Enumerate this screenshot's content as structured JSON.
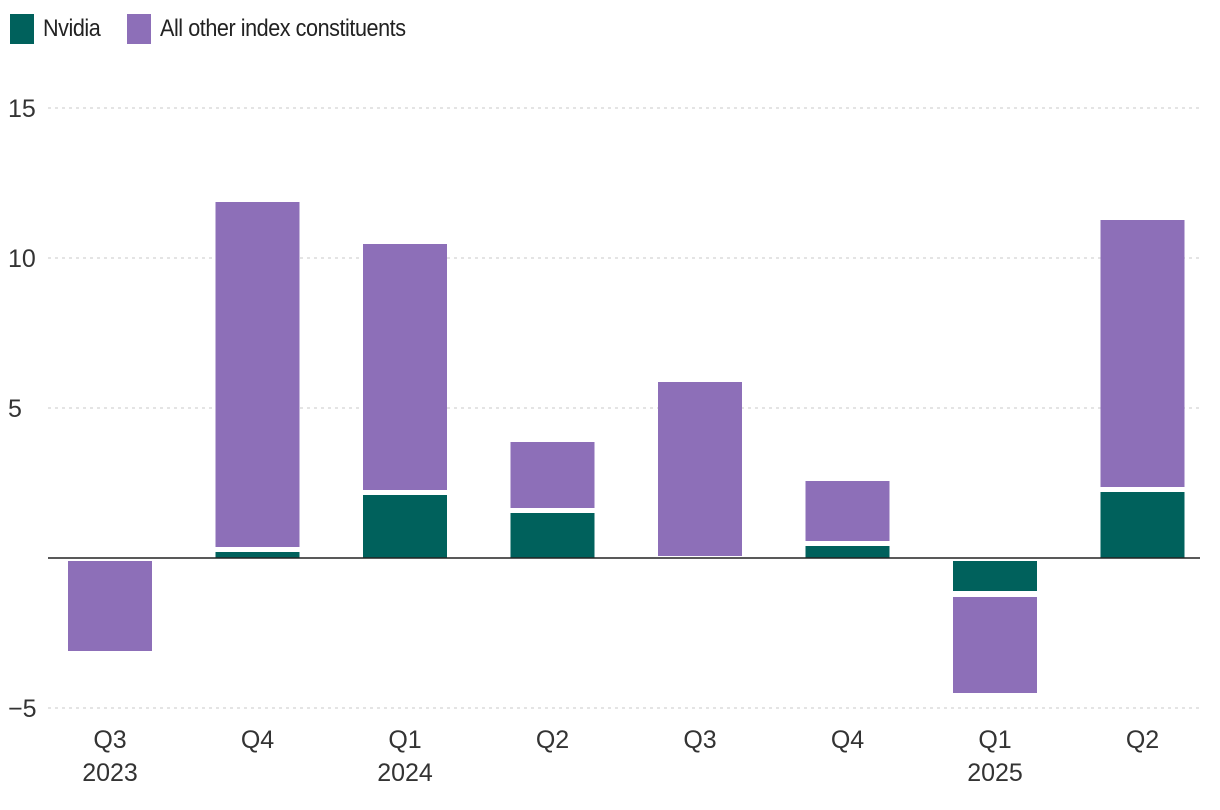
{
  "chart_data": {
    "type": "bar",
    "stacked": true,
    "title": "",
    "xlabel": "",
    "ylabel": "",
    "ylim": [
      -5,
      15
    ],
    "yticks": [
      -5,
      5,
      10,
      15
    ],
    "ytick_labels": [
      "−5",
      "5",
      "10",
      "15"
    ],
    "grid": true,
    "legend_position": "top-left",
    "categories": [
      "Q3",
      "Q4",
      "Q1",
      "Q2",
      "Q3",
      "Q4",
      "Q1",
      "Q2"
    ],
    "year_labels": [
      "2023",
      "",
      "2024",
      "",
      "",
      "",
      "2025",
      ""
    ],
    "series": [
      {
        "name": "Nvidia",
        "color": "#00615c",
        "values": [
          0,
          0.2,
          2.1,
          1.5,
          0,
          0.4,
          -1.0,
          2.2
        ]
      },
      {
        "name": "All other index constituents",
        "color": "#8d6fb8",
        "values": [
          -3.0,
          11.5,
          8.2,
          2.2,
          5.8,
          2.0,
          -3.2,
          8.9
        ]
      }
    ]
  }
}
